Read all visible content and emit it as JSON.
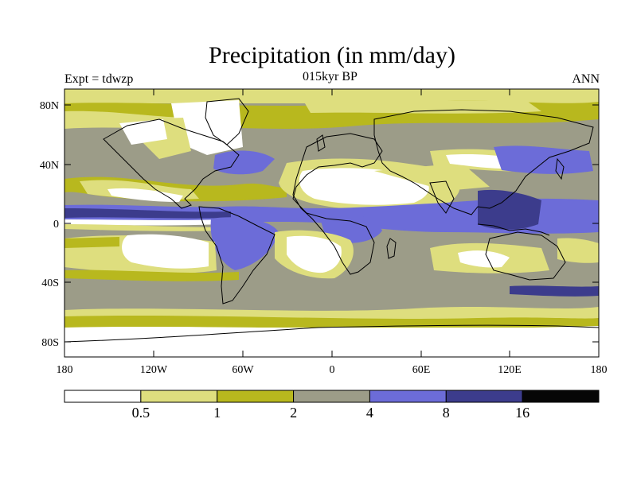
{
  "header": {
    "title": "Precipitation (in mm/day)",
    "experiment": "Expt = tdwzp",
    "period": "015kyr BP",
    "season": "ANN"
  },
  "map": {
    "lat_ticks": [
      "80N",
      "40N",
      "0",
      "40S",
      "80S"
    ],
    "lon_ticks": [
      "180",
      "120W",
      "60W",
      "0",
      "60E",
      "120E",
      "180"
    ]
  },
  "colorbar": {
    "colors": [
      "#ffffff",
      "#dede7e",
      "#b8b81e",
      "#9c9c88",
      "#6c6cd8",
      "#3c3c8c",
      "#060606"
    ],
    "labels": [
      "0.5",
      "1",
      "2",
      "4",
      "8",
      "16"
    ]
  }
}
